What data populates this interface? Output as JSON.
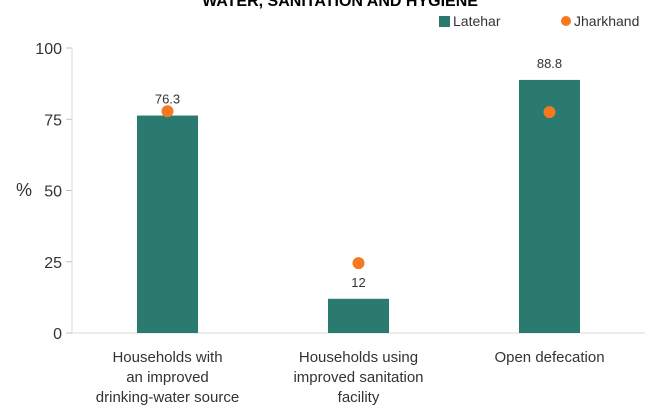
{
  "chart_data": {
    "type": "bar",
    "title": "WATER, SANITATION AND HYGIENE",
    "ylabel": "%",
    "xlabel": "",
    "ylim": [
      0,
      100
    ],
    "yticks": [
      0,
      25,
      50,
      75,
      100
    ],
    "categories": [
      [
        "Households with",
        "an improved",
        "drinking-water source"
      ],
      [
        "Households using",
        "improved sanitation",
        "facility"
      ],
      [
        "Open defecation"
      ]
    ],
    "series": [
      {
        "name": "Latehar",
        "kind": "bar",
        "color": "#2a7a70",
        "values": [
          76.3,
          12,
          88.8
        ],
        "labels": [
          "76.3",
          "12",
          "88.8"
        ]
      },
      {
        "name": "Jharkhand",
        "kind": "marker",
        "color": "#f47920",
        "values": [
          77.8,
          24.5,
          77.5
        ]
      }
    ],
    "legend_position": "top-right",
    "grid": false
  }
}
